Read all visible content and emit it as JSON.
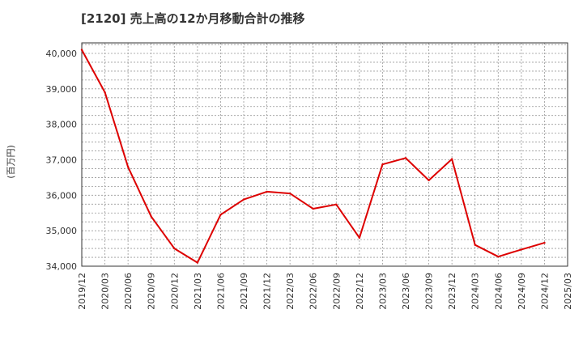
{
  "chart_data": {
    "type": "line",
    "title": "[2120]  売上高の12か月移動合計の推移",
    "xlabel": "",
    "ylabel": "(百万円)",
    "ylim": [
      34000,
      40250
    ],
    "yticks": [
      34000,
      35000,
      36000,
      37000,
      38000,
      39000,
      40000
    ],
    "ytick_labels": [
      "34,000",
      "35,000",
      "36,000",
      "37,000",
      "38,000",
      "39,000",
      "40,000"
    ],
    "xtick_labels": [
      "2019/12",
      "2020/03",
      "2020/06",
      "2020/09",
      "2020/12",
      "2021/03",
      "2021/06",
      "2021/09",
      "2021/12",
      "2022/03",
      "2022/06",
      "2022/09",
      "2022/12",
      "2023/03",
      "2023/06",
      "2023/09",
      "2023/12",
      "2024/03",
      "2024/06",
      "2024/09",
      "2024/12",
      "2025/03"
    ],
    "grid": true,
    "line_color": "#dd0000",
    "series": [
      {
        "name": "売上高",
        "x": [
          "2019/12",
          "2020/03",
          "2020/06",
          "2020/09",
          "2020/12",
          "2021/03",
          "2021/06",
          "2021/09",
          "2021/12",
          "2022/03",
          "2022/06",
          "2022/09",
          "2022/12",
          "2023/03",
          "2023/06",
          "2023/09",
          "2023/12",
          "2024/03",
          "2024/06",
          "2024/09",
          "2024/12"
        ],
        "values": [
          40100,
          38900,
          36800,
          35400,
          34500,
          34100,
          35450,
          35880,
          36100,
          36050,
          35620,
          35740,
          34800,
          36870,
          37050,
          36420,
          37020,
          34600,
          34270,
          34470,
          34660
        ]
      }
    ]
  }
}
